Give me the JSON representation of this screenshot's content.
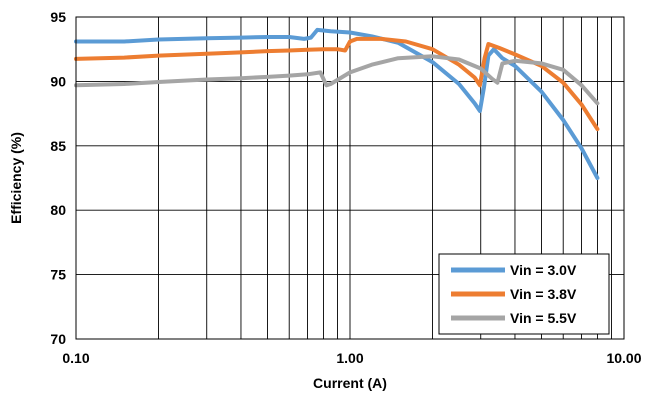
{
  "chart_data": {
    "type": "line",
    "title": "",
    "xlabel": "Current (A)",
    "ylabel": "Efficiency (%)",
    "x_scale": "log",
    "xlim": [
      0.1,
      10
    ],
    "ylim": [
      70,
      95
    ],
    "x_ticks": [
      0.1,
      1,
      10
    ],
    "x_tick_labels": [
      "0.10",
      "1.00",
      "10.00"
    ],
    "y_ticks": [
      70,
      75,
      80,
      85,
      90,
      95
    ],
    "y_tick_labels": [
      "70",
      "75",
      "80",
      "85",
      "90",
      "95"
    ],
    "grid": true,
    "legend_position": "bottom-right",
    "series": [
      {
        "name": "Vin = 3.0V",
        "color": "#5b9bd5",
        "points": [
          [
            0.1,
            93.1
          ],
          [
            0.15,
            93.1
          ],
          [
            0.2,
            93.25
          ],
          [
            0.3,
            93.35
          ],
          [
            0.4,
            93.4
          ],
          [
            0.5,
            93.45
          ],
          [
            0.6,
            93.45
          ],
          [
            0.68,
            93.3
          ],
          [
            0.72,
            93.4
          ],
          [
            0.76,
            94.0
          ],
          [
            0.85,
            93.9
          ],
          [
            1.0,
            93.8
          ],
          [
            1.2,
            93.5
          ],
          [
            1.5,
            93.0
          ],
          [
            2.0,
            91.5
          ],
          [
            2.5,
            89.8
          ],
          [
            2.85,
            88.3
          ],
          [
            2.98,
            87.7
          ],
          [
            3.08,
            89.5
          ],
          [
            3.2,
            92.0
          ],
          [
            3.35,
            92.5
          ],
          [
            3.6,
            91.8
          ],
          [
            4.0,
            91.2
          ],
          [
            5.0,
            89.2
          ],
          [
            6.0,
            87.0
          ],
          [
            7.0,
            84.8
          ],
          [
            8.0,
            82.5
          ]
        ]
      },
      {
        "name": "Vin = 3.8V",
        "color": "#ed7d31",
        "points": [
          [
            0.1,
            91.75
          ],
          [
            0.15,
            91.85
          ],
          [
            0.2,
            92.0
          ],
          [
            0.3,
            92.15
          ],
          [
            0.4,
            92.25
          ],
          [
            0.5,
            92.35
          ],
          [
            0.6,
            92.4
          ],
          [
            0.7,
            92.45
          ],
          [
            0.8,
            92.5
          ],
          [
            0.9,
            92.5
          ],
          [
            0.96,
            92.4
          ],
          [
            1.0,
            93.1
          ],
          [
            1.06,
            93.3
          ],
          [
            1.3,
            93.3
          ],
          [
            1.6,
            93.1
          ],
          [
            2.0,
            92.5
          ],
          [
            2.5,
            91.3
          ],
          [
            2.85,
            90.3
          ],
          [
            2.98,
            89.7
          ],
          [
            3.1,
            91.8
          ],
          [
            3.2,
            92.9
          ],
          [
            3.5,
            92.6
          ],
          [
            4.0,
            92.1
          ],
          [
            5.0,
            91.2
          ],
          [
            6.0,
            89.9
          ],
          [
            7.0,
            88.2
          ],
          [
            8.0,
            86.3
          ]
        ]
      },
      {
        "name": "Vin = 5.5V",
        "color": "#a5a5a5",
        "points": [
          [
            0.1,
            89.7
          ],
          [
            0.15,
            89.8
          ],
          [
            0.2,
            89.95
          ],
          [
            0.3,
            90.15
          ],
          [
            0.4,
            90.25
          ],
          [
            0.5,
            90.35
          ],
          [
            0.6,
            90.45
          ],
          [
            0.7,
            90.55
          ],
          [
            0.78,
            90.7
          ],
          [
            0.82,
            89.7
          ],
          [
            0.85,
            89.8
          ],
          [
            1.0,
            90.7
          ],
          [
            1.2,
            91.3
          ],
          [
            1.5,
            91.8
          ],
          [
            2.0,
            91.95
          ],
          [
            2.5,
            91.7
          ],
          [
            3.0,
            91.0
          ],
          [
            3.3,
            90.2
          ],
          [
            3.45,
            89.9
          ],
          [
            3.6,
            91.4
          ],
          [
            4.0,
            91.6
          ],
          [
            5.0,
            91.4
          ],
          [
            6.0,
            90.9
          ],
          [
            7.0,
            89.7
          ],
          [
            8.0,
            88.3
          ]
        ]
      }
    ]
  }
}
